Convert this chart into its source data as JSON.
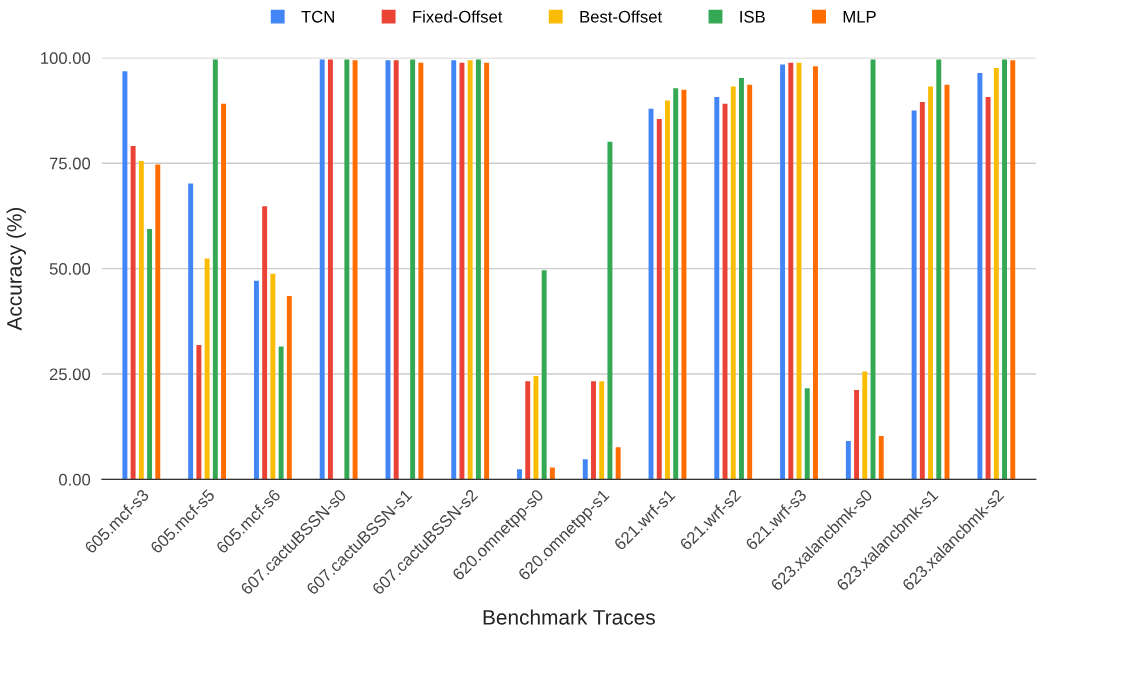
{
  "chart_data": {
    "type": "bar",
    "xlabel": "Benchmark Traces",
    "ylabel": "Accuracy (%)",
    "categories": [
      "605.mcf-s3",
      "605.mcf-s5",
      "605.mcf-s6",
      "607.cactuBSSN-s0",
      "607.cactuBSSN-s1",
      "607.cactuBSSN-s2",
      "620.omnetpp-s0",
      "620.omnetpp-s1",
      "621.wrf-s1",
      "621.wrf-s2",
      "621.wrf-s3",
      "623.xalancbmk-s0",
      "623.xalancbmk-s1",
      "623.xalancbmk-s2"
    ],
    "series": [
      {
        "name": "TCN",
        "color": "#4285f4",
        "values": [
          96.8,
          70.2,
          47.1,
          99.6,
          99.4,
          99.4,
          2.4,
          4.8,
          87.9,
          90.7,
          98.4,
          9.1,
          87.5,
          96.4
        ]
      },
      {
        "name": "Fixed-Offset",
        "color": "#ea4335",
        "values": [
          79.1,
          31.9,
          64.8,
          99.6,
          99.4,
          98.8,
          23.3,
          23.3,
          85.5,
          89.1,
          98.8,
          21.2,
          89.5,
          90.7
        ]
      },
      {
        "name": "Best-Offset",
        "color": "#fbbc04",
        "values": [
          75.5,
          52.4,
          48.8,
          null,
          null,
          99.4,
          24.5,
          23.3,
          89.9,
          93.2,
          98.8,
          25.6,
          93.2,
          97.6
        ]
      },
      {
        "name": "ISB",
        "color": "#34a853",
        "values": [
          59.4,
          99.6,
          31.5,
          99.6,
          99.6,
          99.6,
          49.6,
          80.1,
          92.8,
          95.2,
          21.6,
          99.6,
          99.6,
          99.6
        ]
      },
      {
        "name": "MLP",
        "color": "#ff6d01",
        "values": [
          74.7,
          89.1,
          43.5,
          99.4,
          98.8,
          98.8,
          2.8,
          7.6,
          92.4,
          93.6,
          98.0,
          10.3,
          93.6,
          99.4
        ]
      }
    ],
    "ylim": [
      0,
      100
    ],
    "yticks": [
      {
        "value": 0,
        "label": "0.00"
      },
      {
        "value": 25,
        "label": "25.00"
      },
      {
        "value": 50,
        "label": "50.00"
      },
      {
        "value": 75,
        "label": "75.00"
      },
      {
        "value": 100,
        "label": "100.00"
      }
    ],
    "grid": "y",
    "legend": "top"
  }
}
